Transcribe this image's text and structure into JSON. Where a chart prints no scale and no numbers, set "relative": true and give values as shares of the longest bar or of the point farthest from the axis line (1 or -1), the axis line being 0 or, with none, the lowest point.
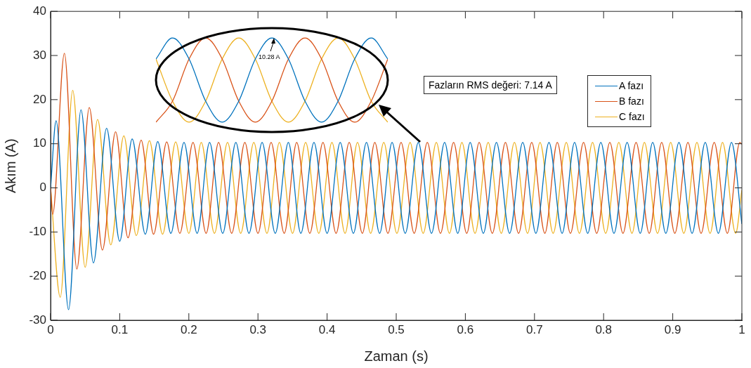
{
  "chart_data": [
    {
      "type": "line",
      "xlabel": "Zaman (s)",
      "ylabel": "Akım (A)",
      "xlim": [
        0,
        1
      ],
      "xticks": [
        0,
        0.1,
        0.2,
        0.3,
        0.4,
        0.5,
        0.6,
        0.7,
        0.8,
        0.9,
        1
      ],
      "ylim": [
        -30,
        40
      ],
      "yticks": [
        -30,
        -20,
        -10,
        0,
        10,
        20,
        30,
        40
      ],
      "grid": false,
      "legend": "top right",
      "marker": "none",
      "line_style": "solid",
      "annotations": [
        "Fazların RMS değeri: 7.14 A"
      ],
      "series": [
        {
          "name": "A fazı",
          "color": "#0072bd",
          "x": [
            0,
            0.008,
            0.026,
            0.044,
            0.062,
            0.081,
            0.1,
            0.118,
            0.137,
            0.155,
            0.174,
            0.193,
            0.212,
            0.23,
            0.249,
            0.268,
            0.287,
            0.306,
            0.325,
            0.344,
            0.362,
            0.381,
            0.4,
            0.419,
            0.438,
            0.457,
            0.476,
            0.494,
            0.513,
            0.532,
            0.551,
            0.57,
            0.589,
            0.607,
            0.626,
            0.645,
            0.664,
            0.683,
            0.702,
            0.721,
            0.74,
            0.758,
            0.777,
            0.796,
            0.815,
            0.834,
            0.853,
            0.871,
            0.89,
            0.909,
            0.928,
            0.947,
            0.966,
            0.985,
            1
          ],
          "values": [
            0,
            15.2,
            -27.6,
            17.7,
            -17,
            13.5,
            -12.1,
            11.1,
            -10.5,
            10.5,
            -10.3,
            10.3,
            -10.3,
            10.3,
            -10.3,
            10.3,
            -10.3,
            10.3,
            -10.3,
            10.3,
            -10.3,
            10.3,
            -10.3,
            10.3,
            -10.3,
            10.3,
            -10.3,
            10.3,
            -10.3,
            10.3,
            -10.3,
            10.3,
            -10.3,
            10.3,
            -10.3,
            10.3,
            -10.3,
            10.3,
            -10.3,
            10.3,
            -10.3,
            10.3,
            -10.3,
            10.3,
            -10.3,
            10.3,
            -10.3,
            10.3,
            -10.3,
            10.3,
            -10.3,
            10.3,
            -10.3,
            10.3,
            -8.2
          ]
        },
        {
          "name": "B fazı",
          "color": "#d95319",
          "x": [
            0,
            0.003,
            0.02,
            0.038,
            0.056,
            0.075,
            0.094,
            0.112,
            0.131,
            0.149,
            0.168,
            0.187,
            0.206,
            0.225,
            0.243,
            0.262,
            0.281,
            0.3,
            0.319,
            0.338,
            0.356,
            0.375,
            0.394,
            0.413,
            0.432,
            0.451,
            0.469,
            0.488,
            0.507,
            0.526,
            0.545,
            0.564,
            0.583,
            0.602,
            0.62,
            0.639,
            0.658,
            0.677,
            0.696,
            0.715,
            0.733,
            0.752,
            0.771,
            0.79,
            0.809,
            0.828,
            0.847,
            0.866,
            0.884,
            0.903,
            0.922,
            0.941,
            0.96,
            0.979,
            0.997,
            1
          ],
          "values": [
            0,
            -6,
            30.5,
            -18.4,
            18.2,
            -14.1,
            12.7,
            -11.3,
            10.8,
            -10.5,
            10.4,
            -10.3,
            10.3,
            -10.3,
            10.3,
            -10.3,
            10.3,
            -10.3,
            10.3,
            -10.3,
            10.3,
            -10.3,
            10.3,
            -10.3,
            10.3,
            -10.3,
            10.3,
            -10.3,
            10.3,
            -10.3,
            10.3,
            -10.3,
            10.3,
            -10.3,
            10.3,
            -10.3,
            10.3,
            -10.3,
            10.3,
            -10.3,
            10.3,
            -10.3,
            10.3,
            -10.3,
            10.3,
            -10.3,
            10.3,
            -10.3,
            10.3,
            -10.3,
            10.3,
            -10.3,
            10.3,
            -10.3,
            10.3,
            9.9
          ]
        },
        {
          "name": "C fazı",
          "color": "#edb120",
          "x": [
            0,
            0.014,
            0.032,
            0.05,
            0.068,
            0.087,
            0.106,
            0.124,
            0.143,
            0.162,
            0.181,
            0.2,
            0.218,
            0.237,
            0.256,
            0.275,
            0.294,
            0.313,
            0.331,
            0.35,
            0.369,
            0.388,
            0.407,
            0.426,
            0.444,
            0.463,
            0.482,
            0.501,
            0.52,
            0.539,
            0.558,
            0.577,
            0.595,
            0.614,
            0.633,
            0.652,
            0.671,
            0.69,
            0.708,
            0.727,
            0.746,
            0.765,
            0.784,
            0.803,
            0.822,
            0.841,
            0.859,
            0.878,
            0.897,
            0.916,
            0.935,
            0.954,
            0.972,
            0.991,
            1
          ],
          "values": [
            0,
            -24.8,
            22.1,
            -18,
            15.5,
            -12.9,
            11.8,
            -10.8,
            10.7,
            -10.5,
            10.4,
            -10.3,
            10.3,
            -10.3,
            10.3,
            -10.3,
            10.3,
            -10.3,
            10.3,
            -10.3,
            10.3,
            -10.3,
            10.3,
            -10.3,
            10.3,
            -10.3,
            10.3,
            -10.3,
            10.3,
            -10.3,
            10.3,
            -10.3,
            10.3,
            -10.3,
            10.3,
            -10.3,
            10.3,
            -10.3,
            10.3,
            -10.3,
            10.3,
            -10.3,
            10.3,
            -10.3,
            10.3,
            -10.3,
            10.3,
            -10.3,
            10.3,
            -10.3,
            10.3,
            -10.3,
            10.3,
            -10.3,
            -0.5
          ]
        }
      ]
    },
    {
      "type": "line",
      "relative": true,
      "marker": "none",
      "line_style": "solid",
      "annotations": [
        "10.28 A"
      ],
      "categories": [
        null,
        null,
        null,
        null,
        null,
        null,
        null,
        null,
        null,
        null,
        null,
        null,
        null,
        null,
        null
      ],
      "series": [
        {
          "color": "#0072bd",
          "values": [
            0.75,
            1,
            0.75,
            0.25,
            0,
            0.25,
            0.75,
            1,
            0.75,
            0.25,
            0,
            0.25,
            0.75,
            1,
            0.75
          ]
        },
        {
          "color": "#d95319",
          "values": [
            0,
            0.25,
            0.75,
            1,
            0.75,
            0.25,
            0,
            0.25,
            0.75,
            1,
            0.75,
            0.25,
            0,
            0.25,
            0.75
          ]
        },
        {
          "color": "#edb120",
          "values": [
            0.75,
            0.25,
            0,
            0.25,
            0.75,
            1,
            0.75,
            0.25,
            0,
            0.25,
            0.75,
            1,
            0.75,
            0.25,
            0
          ]
        }
      ]
    }
  ]
}
